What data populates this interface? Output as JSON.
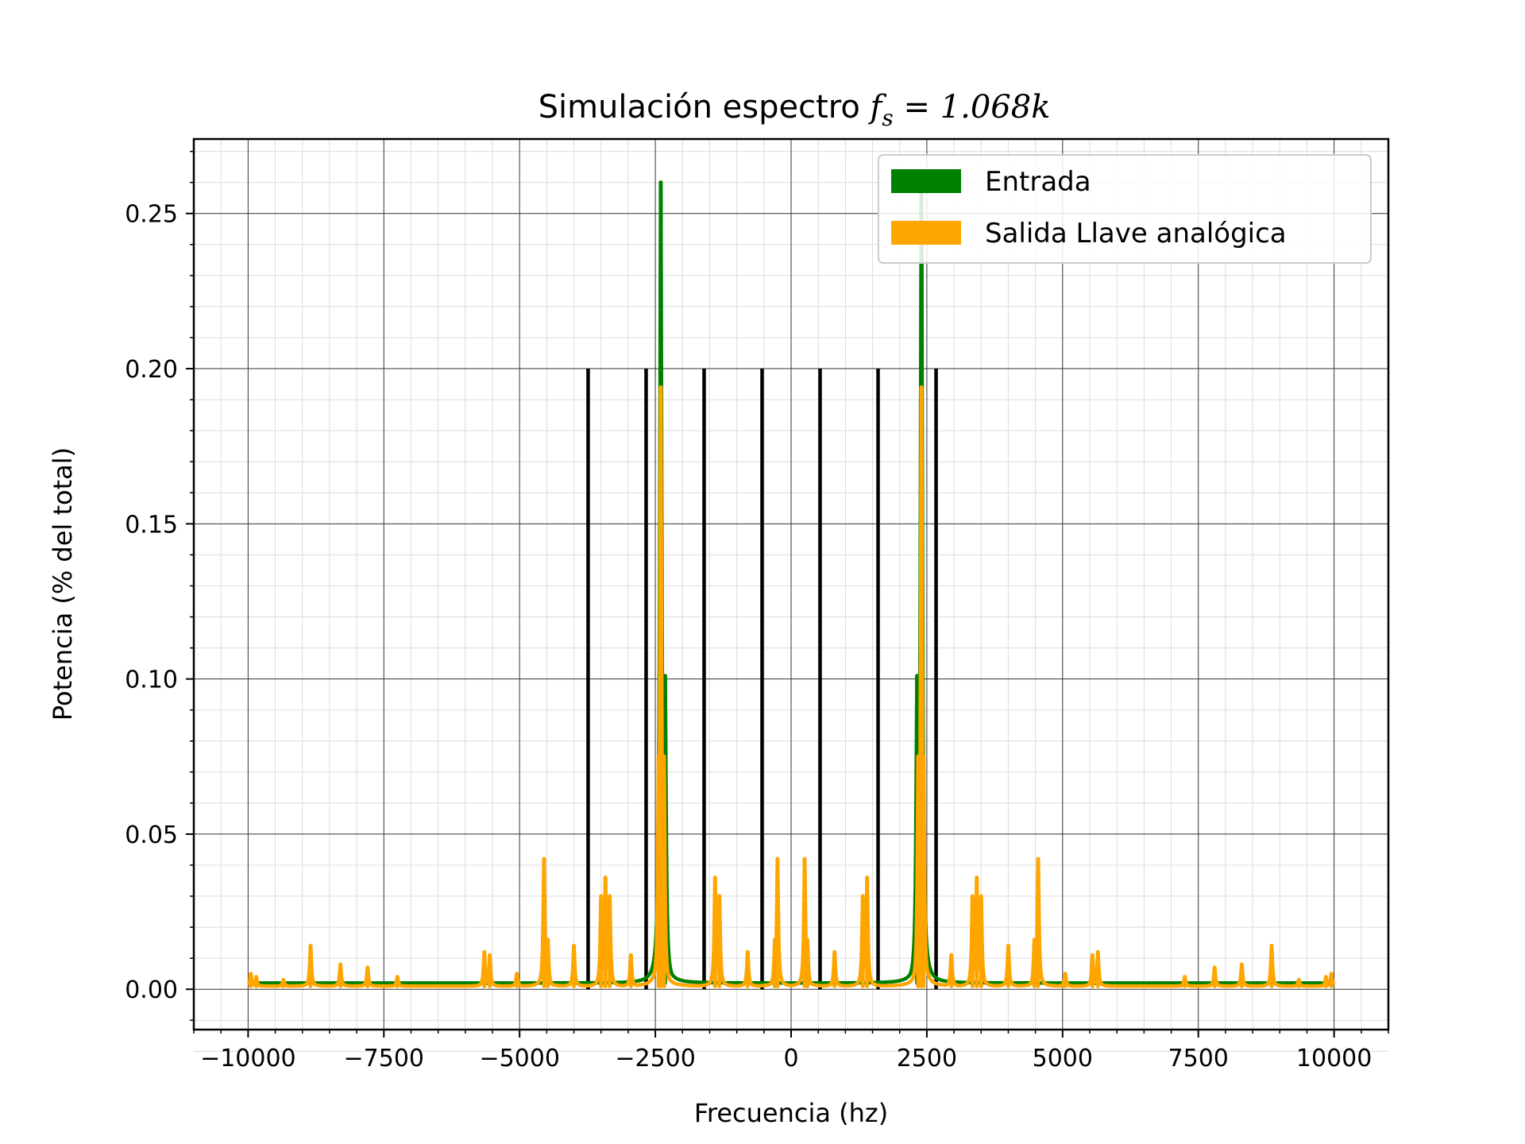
{
  "chart_data": {
    "type": "line",
    "title": "Simulación espectro",
    "title_math": {
      "symbol": "f",
      "subscript": "s",
      "value": "1.068k"
    },
    "xlabel": "Frecuencia (hz)",
    "ylabel": "Potencia (% del total)",
    "xlim": [
      -11000,
      11000
    ],
    "ylim": [
      -0.013,
      0.274
    ],
    "x_ticks": [
      -10000,
      -7500,
      -5000,
      -2500,
      0,
      2500,
      5000,
      7500,
      10000
    ],
    "x_tick_labels": [
      "−10000",
      "−7500",
      "−5000",
      "−2500",
      "0",
      "2500",
      "5000",
      "7500",
      "10000"
    ],
    "y_ticks": [
      0.0,
      0.05,
      0.1,
      0.15,
      0.2,
      0.25
    ],
    "y_tick_labels": [
      "0.00",
      "0.05",
      "0.10",
      "0.15",
      "0.20",
      "0.25"
    ],
    "grid": true,
    "minor_grid": true,
    "legend_position": "upper-right",
    "sampling_markers": {
      "color": "#000000",
      "height": 0.2,
      "x": [
        -3738,
        -2670,
        -1602,
        -534,
        534,
        1602,
        2670
      ]
    },
    "series": [
      {
        "name": "Entrada",
        "color": "#008000",
        "baseline": 0.002,
        "peaks": [
          {
            "x": -2400,
            "y": 0.26
          },
          {
            "x": -2320,
            "y": 0.101
          },
          {
            "x": 2320,
            "y": 0.101
          },
          {
            "x": 2400,
            "y": 0.26
          }
        ]
      },
      {
        "name": "Salida Llave analógica",
        "color": "#FFA500",
        "baseline": 0.001,
        "peaks": [
          {
            "x": -9950,
            "y": 0.005
          },
          {
            "x": -9850,
            "y": 0.004
          },
          {
            "x": -9350,
            "y": 0.003
          },
          {
            "x": -8850,
            "y": 0.014
          },
          {
            "x": -8300,
            "y": 0.008
          },
          {
            "x": -7800,
            "y": 0.007
          },
          {
            "x": -7250,
            "y": 0.004
          },
          {
            "x": -5650,
            "y": 0.012
          },
          {
            "x": -5550,
            "y": 0.011
          },
          {
            "x": -5050,
            "y": 0.005
          },
          {
            "x": -4550,
            "y": 0.042
          },
          {
            "x": -4480,
            "y": 0.016
          },
          {
            "x": -4000,
            "y": 0.014
          },
          {
            "x": -3500,
            "y": 0.03
          },
          {
            "x": -3420,
            "y": 0.036
          },
          {
            "x": -3340,
            "y": 0.03
          },
          {
            "x": -2950,
            "y": 0.011
          },
          {
            "x": -2440,
            "y": 0.075
          },
          {
            "x": -2400,
            "y": 0.194
          },
          {
            "x": -2340,
            "y": 0.075
          },
          {
            "x": -1400,
            "y": 0.036
          },
          {
            "x": -1320,
            "y": 0.03
          },
          {
            "x": -800,
            "y": 0.012
          },
          {
            "x": -300,
            "y": 0.016
          },
          {
            "x": -250,
            "y": 0.042
          },
          {
            "x": 250,
            "y": 0.042
          },
          {
            "x": 300,
            "y": 0.016
          },
          {
            "x": 800,
            "y": 0.012
          },
          {
            "x": 1320,
            "y": 0.03
          },
          {
            "x": 1400,
            "y": 0.036
          },
          {
            "x": 2340,
            "y": 0.075
          },
          {
            "x": 2400,
            "y": 0.194
          },
          {
            "x": 2440,
            "y": 0.075
          },
          {
            "x": 2950,
            "y": 0.011
          },
          {
            "x": 3340,
            "y": 0.03
          },
          {
            "x": 3420,
            "y": 0.036
          },
          {
            "x": 3500,
            "y": 0.03
          },
          {
            "x": 4000,
            "y": 0.014
          },
          {
            "x": 4480,
            "y": 0.016
          },
          {
            "x": 4550,
            "y": 0.042
          },
          {
            "x": 5050,
            "y": 0.005
          },
          {
            "x": 5550,
            "y": 0.011
          },
          {
            "x": 5650,
            "y": 0.012
          },
          {
            "x": 7250,
            "y": 0.004
          },
          {
            "x": 7800,
            "y": 0.007
          },
          {
            "x": 8300,
            "y": 0.008
          },
          {
            "x": 8850,
            "y": 0.014
          },
          {
            "x": 9350,
            "y": 0.003
          },
          {
            "x": 9850,
            "y": 0.004
          },
          {
            "x": 9950,
            "y": 0.005
          }
        ]
      }
    ]
  }
}
